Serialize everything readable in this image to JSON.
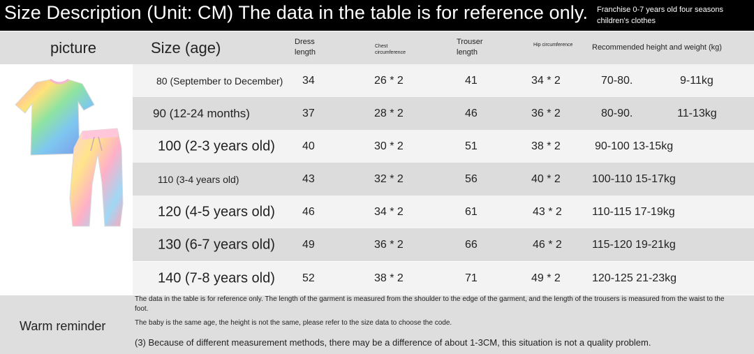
{
  "banner": {
    "title": "Size Description (Unit: CM) The data in the table is for reference only.",
    "subtitle": "Franchise 0-7 years old four seasons children's clothes"
  },
  "table": {
    "headers": {
      "picture": "picture",
      "size": "Size (age)",
      "dress": "Dress length",
      "chest": "Chest circumference",
      "trouser": "Trouser length",
      "hip": "Hip circumference",
      "recommended": "Recommended height and weight (kg)"
    },
    "rows": [
      {
        "size": "80 (September to December)",
        "dress": "34",
        "chest": "26 * 2",
        "trouser": "41",
        "hip": "34 * 2",
        "height": "70-80.",
        "weight": "9-11kg"
      },
      {
        "size": "90 (12-24 months)",
        "dress": "37",
        "chest": "28 * 2",
        "trouser": "46",
        "hip": "36 * 2",
        "height": "80-90.",
        "weight": "11-13kg"
      },
      {
        "size": "100 (2-3 years old)",
        "dress": "40",
        "chest": "30 * 2",
        "trouser": "51",
        "hip": "38 * 2",
        "height": "90-100 13-15kg",
        "weight": ""
      },
      {
        "size": "110 (3-4 years old)",
        "dress": "43",
        "chest": "32 * 2",
        "trouser": "56",
        "hip": "40 * 2",
        "height": "100-110 15-17kg",
        "weight": ""
      },
      {
        "size": "120 (4-5 years old)",
        "dress": "46",
        "chest": "34 * 2",
        "trouser": "61",
        "hip": "43 * 2",
        "height": "110-115 17-19kg",
        "weight": ""
      },
      {
        "size": "130 (6-7 years old)",
        "dress": "49",
        "chest": "36 * 2",
        "trouser": "66",
        "hip": "46 * 2",
        "height": "115-120 19-21kg",
        "weight": ""
      },
      {
        "size": "140 (7-8 years old)",
        "dress": "52",
        "chest": "38 * 2",
        "trouser": "71",
        "hip": "49 * 2",
        "height": "120-125 21-23kg",
        "weight": ""
      }
    ]
  },
  "reminder": {
    "label": "Warm reminder",
    "note1": "The data in the table is for reference only. The length of the garment is measured from the shoulder to the edge of the garment, and the length of the trousers is measured from the waist to the foot.",
    "note2": "The baby is the same age, the height is not the same, please refer to the size data to choose the code.",
    "note3": "(3) Because of different measurement methods, there may be a difference of about 1-3CM, this situation is not a quality problem."
  },
  "product_image": {
    "icon": "tie-dye-tshirt-and-jogger-set"
  }
}
